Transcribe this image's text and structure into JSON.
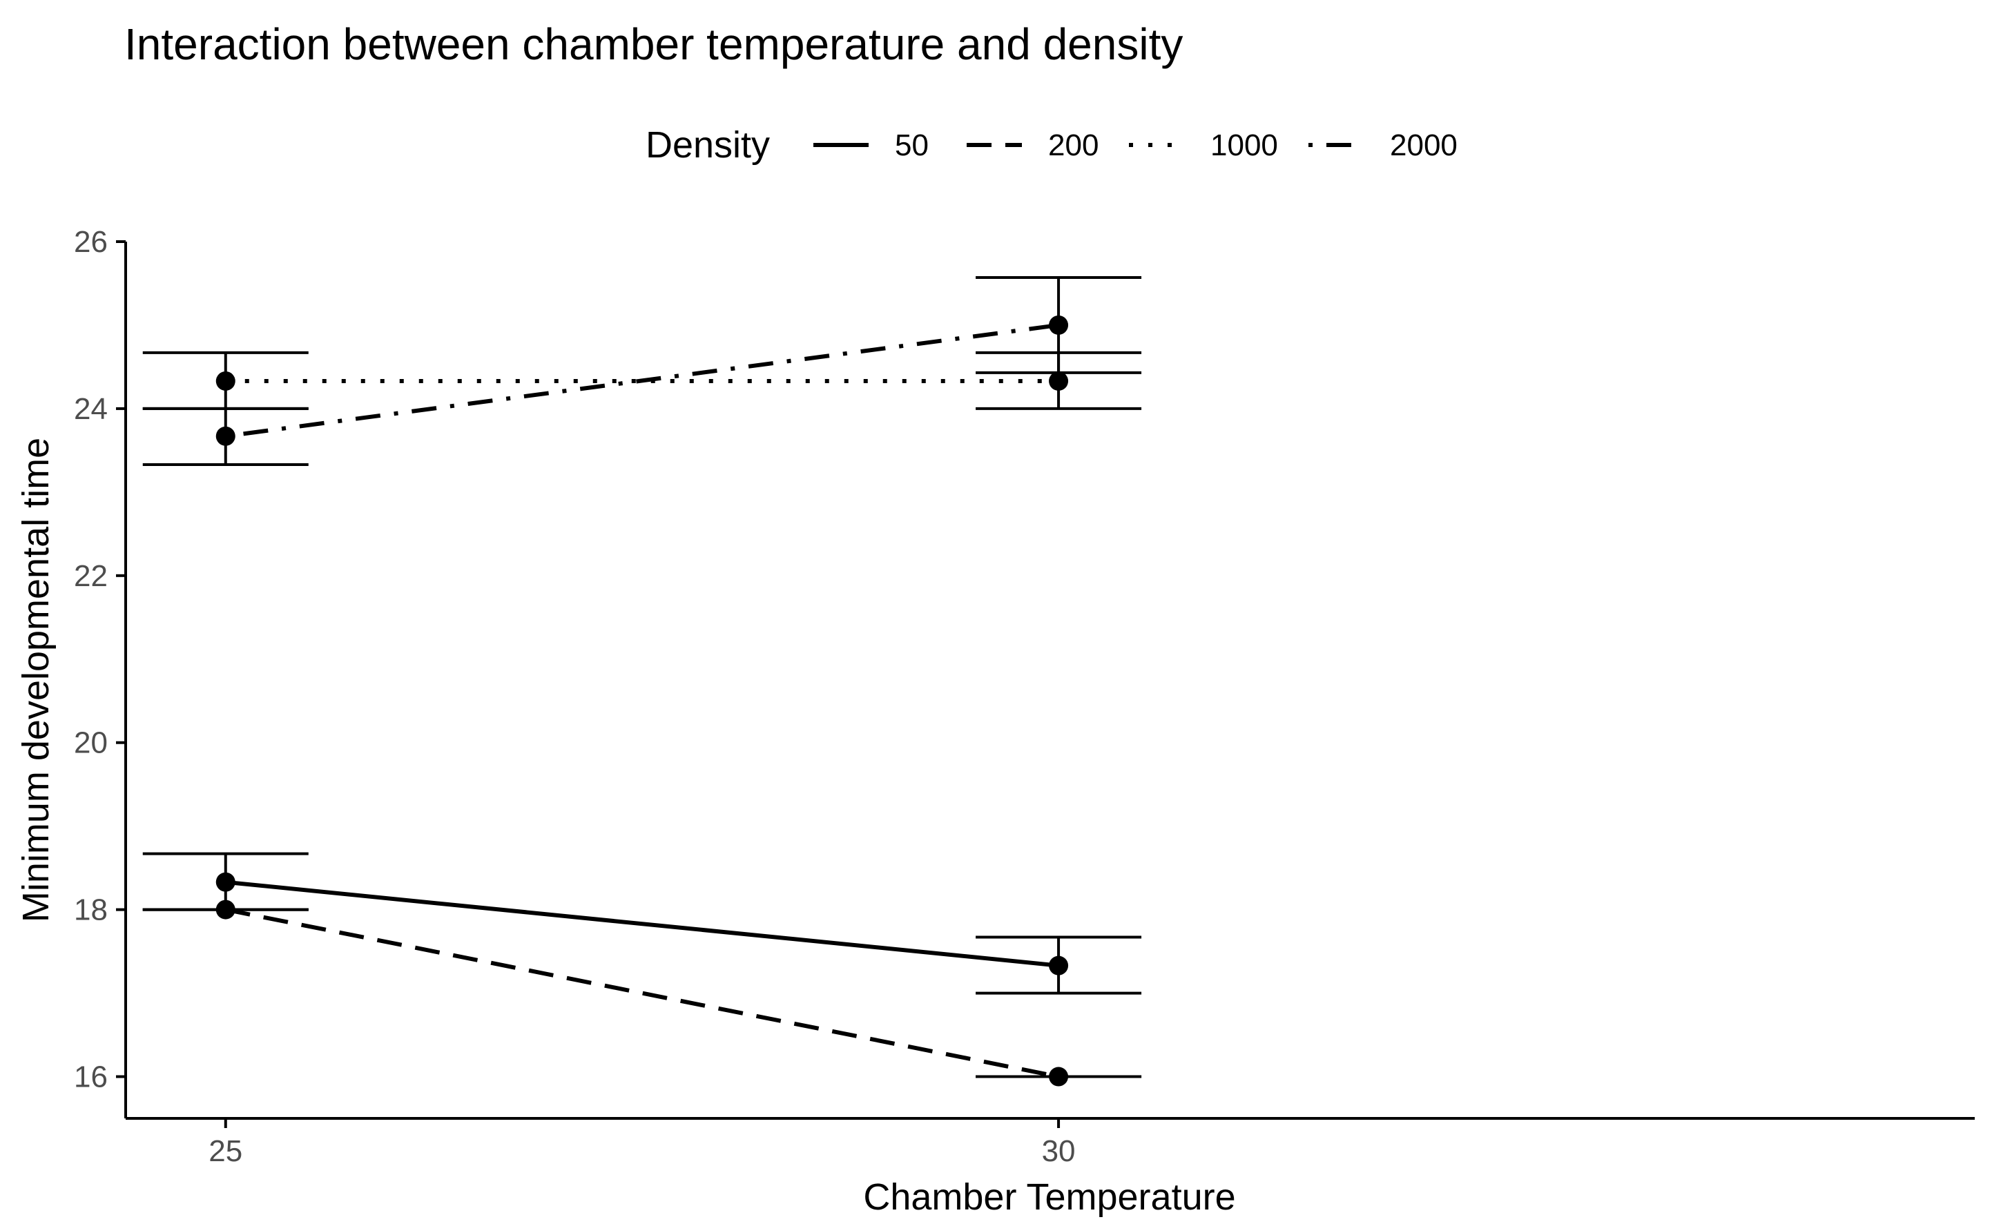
{
  "chart_data": {
    "type": "line",
    "title": "Interaction between chamber temperature and density",
    "xlabel": "Chamber Temperature",
    "ylabel": "Minimum developmental time",
    "categories": [
      "25",
      "30"
    ],
    "xlim": [
      24.4,
      35.5
    ],
    "ylim": [
      15.5,
      26.0
    ],
    "yticks": [
      16,
      18,
      20,
      22,
      24,
      26
    ],
    "yticklabels": [
      "16",
      "18",
      "20",
      "22",
      "24",
      "26"
    ],
    "xticks": [
      25,
      30
    ],
    "xticklabels": [
      "25",
      "30"
    ],
    "grid": false,
    "legend": {
      "title": "Density",
      "position": "top",
      "entries": [
        {
          "label": "50",
          "linetype": "solid"
        },
        {
          "label": "200",
          "linetype": "dashed"
        },
        {
          "label": "1000",
          "linetype": "dotted"
        },
        {
          "label": "2000",
          "linetype": "dotdash"
        }
      ]
    },
    "series": [
      {
        "name": "50",
        "linetype": "solid",
        "x": [
          25,
          30
        ],
        "values": [
          18.33,
          17.33
        ],
        "err_low": [
          18.0,
          17.0
        ],
        "err_high": [
          18.67,
          17.67
        ]
      },
      {
        "name": "200",
        "linetype": "dashed",
        "x": [
          25,
          30
        ],
        "values": [
          18.0,
          16.0
        ],
        "err_low": [
          18.0,
          16.0
        ],
        "err_high": [
          18.0,
          16.0
        ]
      },
      {
        "name": "1000",
        "linetype": "dotted",
        "x": [
          25,
          30
        ],
        "values": [
          24.33,
          24.33
        ],
        "err_low": [
          24.0,
          24.0
        ],
        "err_high": [
          24.67,
          24.67
        ]
      },
      {
        "name": "2000",
        "linetype": "dotdash",
        "x": [
          25,
          30
        ],
        "values": [
          23.67,
          25.0
        ],
        "err_low": [
          23.33,
          24.43
        ],
        "err_high": [
          24.0,
          25.57
        ]
      }
    ]
  }
}
